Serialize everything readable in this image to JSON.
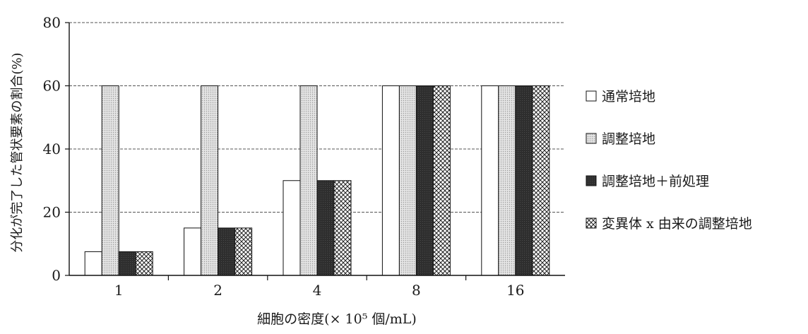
{
  "chart_data": {
    "type": "bar",
    "title": "",
    "xlabel": "細胞の密度(× 10⁵ 個/mL)",
    "ylabel": "分化が完了した管状要素の割合(%)",
    "categories": [
      "1",
      "2",
      "4",
      "8",
      "16"
    ],
    "ylim": [
      0,
      80
    ],
    "yticks": [
      0,
      20,
      40,
      60,
      80
    ],
    "grid": true,
    "legend_position": "right",
    "series": [
      {
        "name": "通常培地",
        "values": [
          7.5,
          15,
          30,
          60,
          60
        ],
        "pattern": "white"
      },
      {
        "name": "調整培地",
        "values": [
          60,
          60,
          60,
          60,
          60
        ],
        "pattern": "dots"
      },
      {
        "name": "調整培地＋前処理",
        "values": [
          7.5,
          15,
          30,
          60,
          60
        ],
        "pattern": "dark"
      },
      {
        "name": "変異体 x 由来の調整培地",
        "values": [
          7.5,
          15,
          30,
          60,
          60
        ],
        "pattern": "crosshatch"
      }
    ]
  }
}
